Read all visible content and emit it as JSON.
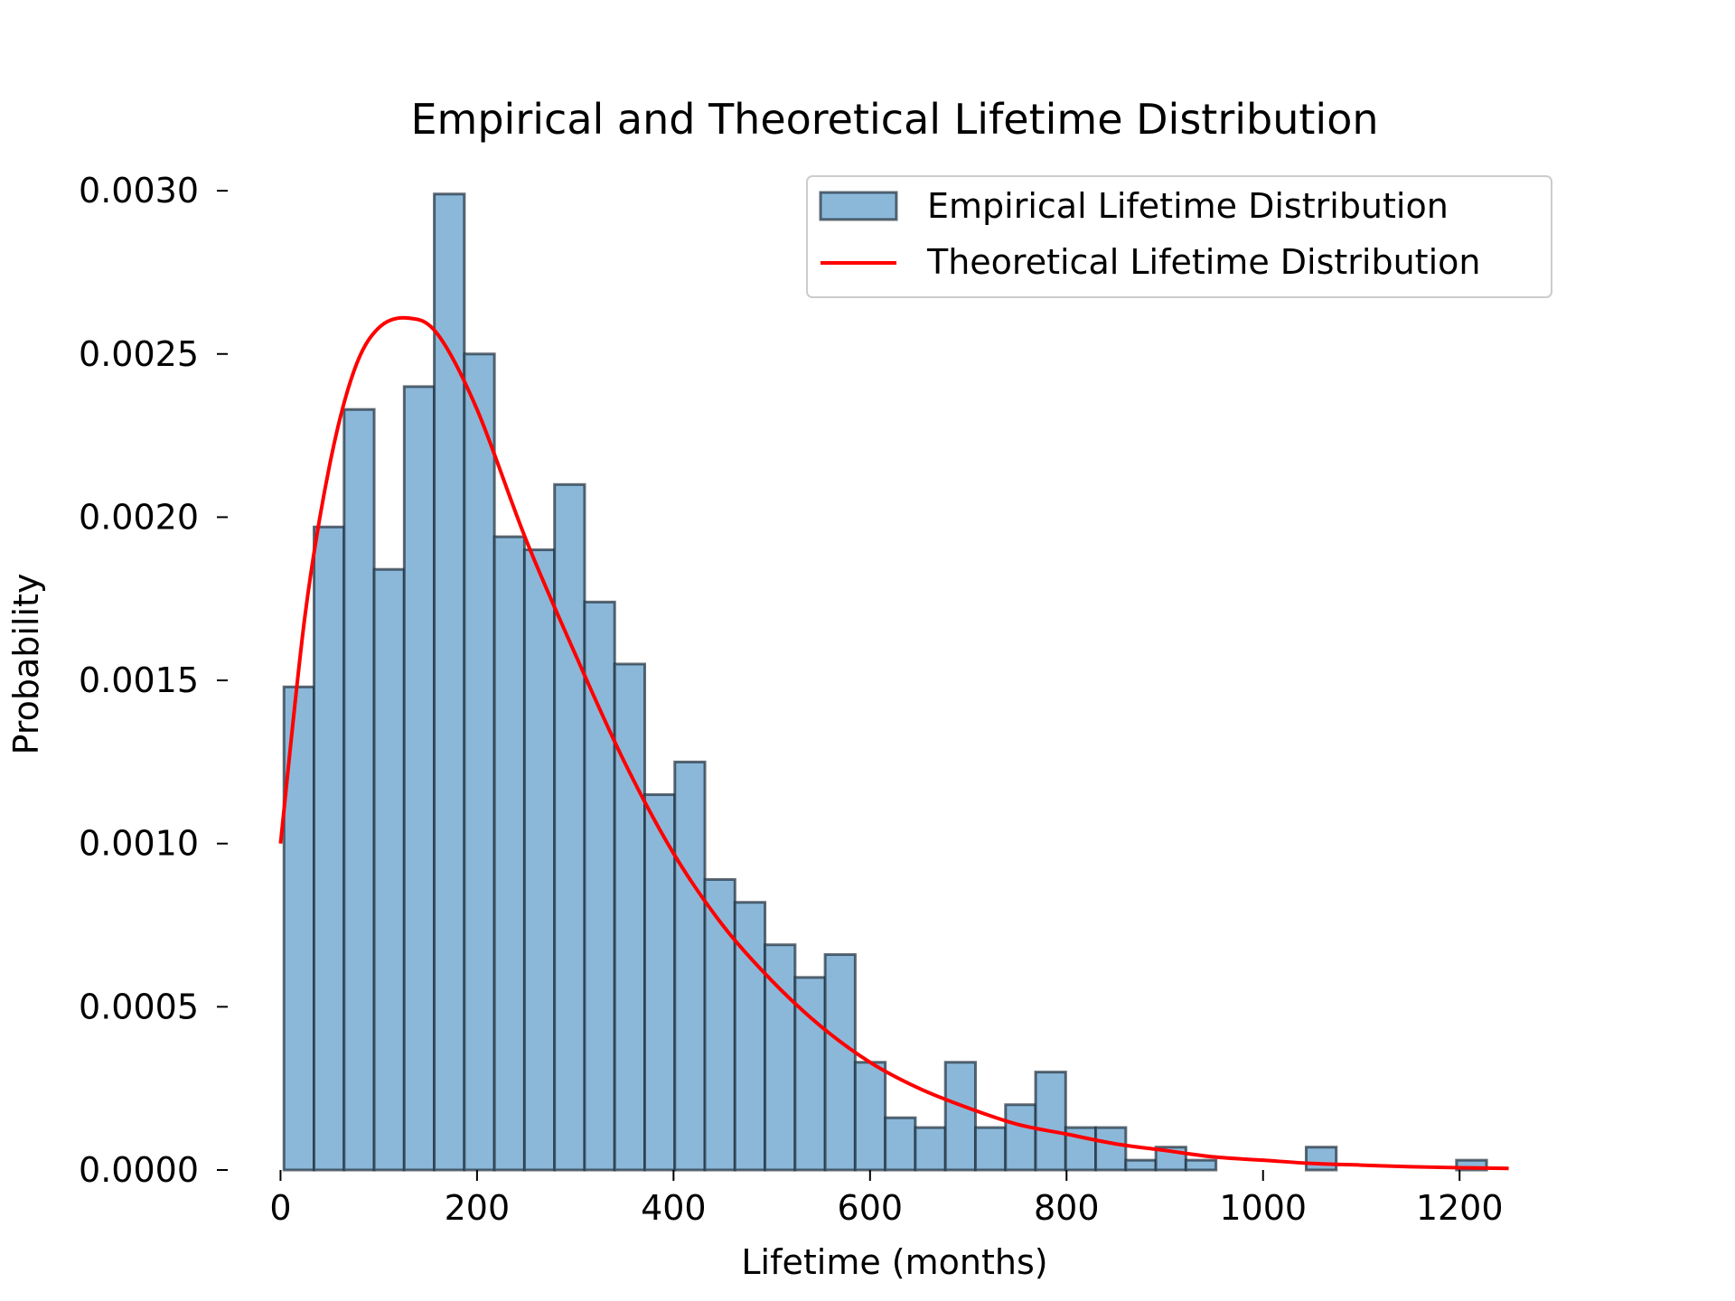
{
  "chart_data": {
    "type": "bar",
    "title": "Empirical and Theoretical Lifetime Distribution",
    "xlabel": "Lifetime (months)",
    "ylabel": "Probability",
    "xlim": [
      -5,
      1255
    ],
    "ylim": [
      0,
      0.0031
    ],
    "x_ticks": [
      0,
      200,
      400,
      600,
      800,
      1000,
      1200
    ],
    "x_tick_labels": [
      "0",
      "200",
      "400",
      "600",
      "800",
      "1000",
      "1200"
    ],
    "y_ticks": [
      0,
      0.0005,
      0.001,
      0.0015,
      0.002,
      0.0025,
      0.003
    ],
    "y_tick_labels": [
      "0.0000",
      "0.0005",
      "0.0010",
      "0.0015",
      "0.0020",
      "0.0025",
      "0.0030"
    ],
    "grid": false,
    "legend_position": "top-right",
    "colors": {
      "bar_fill": "#8bb8d9",
      "bar_edge": "#1f2d3a",
      "line": "#ff0000"
    },
    "series": [
      {
        "name": "Empirical Lifetime Distribution",
        "kind": "histogram",
        "bin_edges": [
          3.5,
          34.1,
          64.7,
          95.3,
          125.9,
          156.5,
          187.1,
          217.7,
          248.3,
          278.9,
          309.5,
          340.1,
          370.7,
          401.3,
          431.9,
          462.5,
          493.1,
          523.7,
          554.3,
          584.9,
          615.5,
          646.1,
          676.7,
          707.3,
          737.9,
          768.5,
          799.1,
          829.7,
          860.3,
          890.9,
          921.5,
          952.1,
          982.7,
          1013.3,
          1043.9,
          1074.5,
          1105.1,
          1135.7,
          1166.3,
          1196.9,
          1227.5
        ],
        "values": [
          0.00148,
          0.00197,
          0.00233,
          0.00184,
          0.0024,
          0.00299,
          0.0025,
          0.00194,
          0.0019,
          0.0021,
          0.00174,
          0.00155,
          0.00115,
          0.00125,
          0.00089,
          0.00082,
          0.00069,
          0.00059,
          0.00066,
          0.00033,
          0.00016,
          0.00013,
          0.00033,
          0.00013,
          0.0002,
          0.0003,
          0.00013,
          0.00013,
          3e-05,
          7e-05,
          3e-05,
          0,
          0,
          0,
          7e-05,
          0,
          0,
          0,
          0,
          3e-05
        ]
      },
      {
        "name": "Theoretical Lifetime Distribution",
        "kind": "line",
        "x": [
          0,
          25,
          50,
          75,
          100,
          130,
          160,
          200,
          250,
          300,
          350,
          400,
          450,
          500,
          550,
          600,
          650,
          700,
          750,
          800,
          850,
          900,
          950,
          1000,
          1050,
          1100,
          1150,
          1200,
          1250
        ],
        "y": [
          0.001,
          0.0017,
          0.00216,
          0.00245,
          0.00258,
          0.00261,
          0.00256,
          0.00233,
          0.00193,
          0.00158,
          0.00125,
          0.00097,
          0.00075,
          0.00058,
          0.00044,
          0.00033,
          0.00025,
          0.00019,
          0.00014,
          0.00011,
          8e-05,
          6e-05,
          4e-05,
          3e-05,
          2e-05,
          1.5e-05,
          1e-05,
          7e-06,
          5e-06
        ]
      }
    ]
  }
}
